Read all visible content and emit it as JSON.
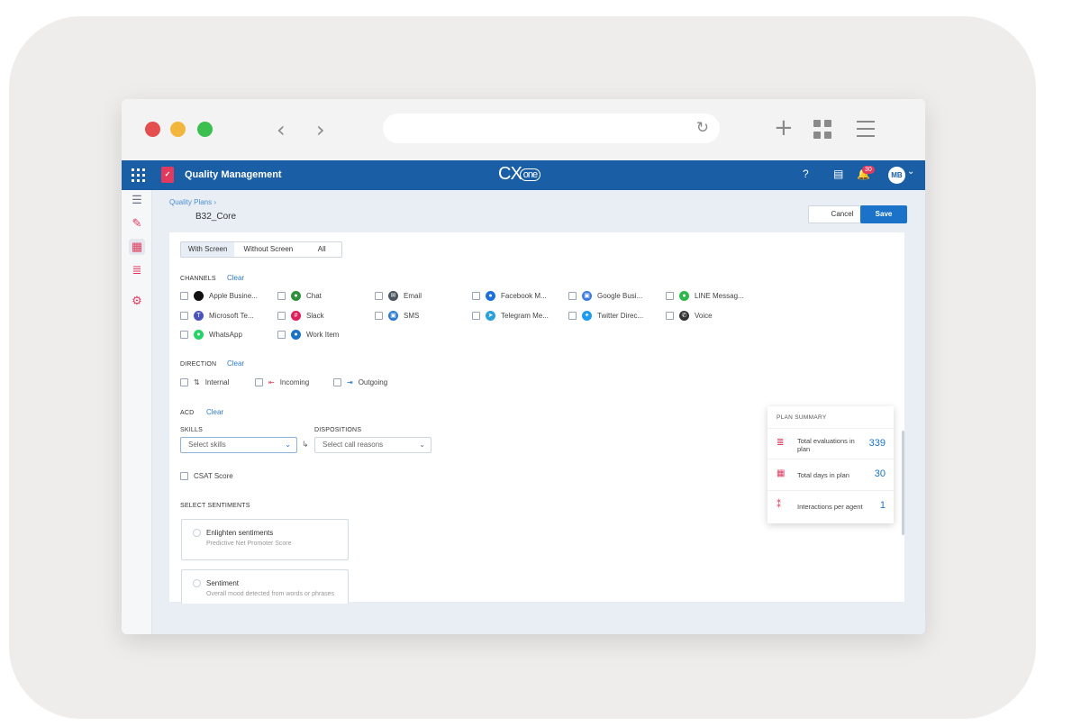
{
  "browser": {
    "nav_back": "‹",
    "nav_forward": "›",
    "reload": "↻",
    "new_tab": "+"
  },
  "app": {
    "title": "Quality Management",
    "brand_main": "CX",
    "brand_sub": "one",
    "notifications_count": "30",
    "user_initials": "MB"
  },
  "page": {
    "breadcrumb": "Quality Plans ›",
    "plan_name": "B32_Core",
    "cancel_label": "Cancel",
    "save_label": "Save"
  },
  "screen_tabs": [
    "With Screen",
    "Without Screen",
    "All"
  ],
  "channels": {
    "label": "CHANNELS",
    "clear": "Clear",
    "items": [
      {
        "label": "Apple Busine...",
        "icon": "apple-icon",
        "color": "#111111"
      },
      {
        "label": "Chat",
        "icon": "chat-icon",
        "color": "#2f8f3a"
      },
      {
        "label": "Email",
        "icon": "email-icon",
        "color": "#4a5560"
      },
      {
        "label": "Facebook M...",
        "icon": "messenger-icon",
        "color": "#1e6fd9"
      },
      {
        "label": "Google Busi...",
        "icon": "google-business-icon",
        "color": "#3b7be0"
      },
      {
        "label": "LINE Messag...",
        "icon": "line-icon",
        "color": "#2eb84b"
      },
      {
        "label": "Microsoft Te...",
        "icon": "teams-icon",
        "color": "#4b53bc"
      },
      {
        "label": "Slack",
        "icon": "slack-icon",
        "color": "#e01e5a"
      },
      {
        "label": "SMS",
        "icon": "sms-icon",
        "color": "#2d7bcf"
      },
      {
        "label": "Telegram Me...",
        "icon": "telegram-icon",
        "color": "#2aa0da"
      },
      {
        "label": "Twitter Direc...",
        "icon": "twitter-icon",
        "color": "#1d9bf0"
      },
      {
        "label": "Voice",
        "icon": "phone-icon",
        "color": "#333333"
      },
      {
        "label": "WhatsApp",
        "icon": "whatsapp-icon",
        "color": "#25d366"
      },
      {
        "label": "Work Item",
        "icon": "work-item-icon",
        "color": "#1a73c8"
      }
    ]
  },
  "direction": {
    "label": "DIRECTION",
    "clear": "Clear",
    "items": [
      {
        "label": "Internal",
        "icon": "internal-icon"
      },
      {
        "label": "Incoming",
        "icon": "incoming-icon"
      },
      {
        "label": "Outgoing",
        "icon": "outgoing-icon"
      }
    ]
  },
  "acd": {
    "label": "ACD",
    "clear": "Clear",
    "skills_label": "SKILLS",
    "skills_placeholder": "Select skills",
    "dispositions_label": "DISPOSITIONS",
    "dispositions_placeholder": "Select call reasons"
  },
  "csat_label": "CSAT Score",
  "sentiments": {
    "label": "SELECT SENTIMENTS",
    "items": [
      {
        "title": "Enlighten sentiments",
        "subtitle": "Predictive Net Promoter Score"
      },
      {
        "title": "Sentiment",
        "subtitle": "Overall mood detected from words or phrases"
      }
    ]
  },
  "plan_summary": {
    "title": "PLAN SUMMARY",
    "rows": [
      {
        "label": "Total evaluations in plan",
        "value": "339"
      },
      {
        "label": "Total days in plan",
        "value": "30"
      },
      {
        "label": "Interactions per agent",
        "value": "1"
      }
    ]
  },
  "colors": {
    "brand_blue": "#1a5fa6",
    "accent_pink": "#e23a5e",
    "link_blue": "#2d7bcf"
  }
}
